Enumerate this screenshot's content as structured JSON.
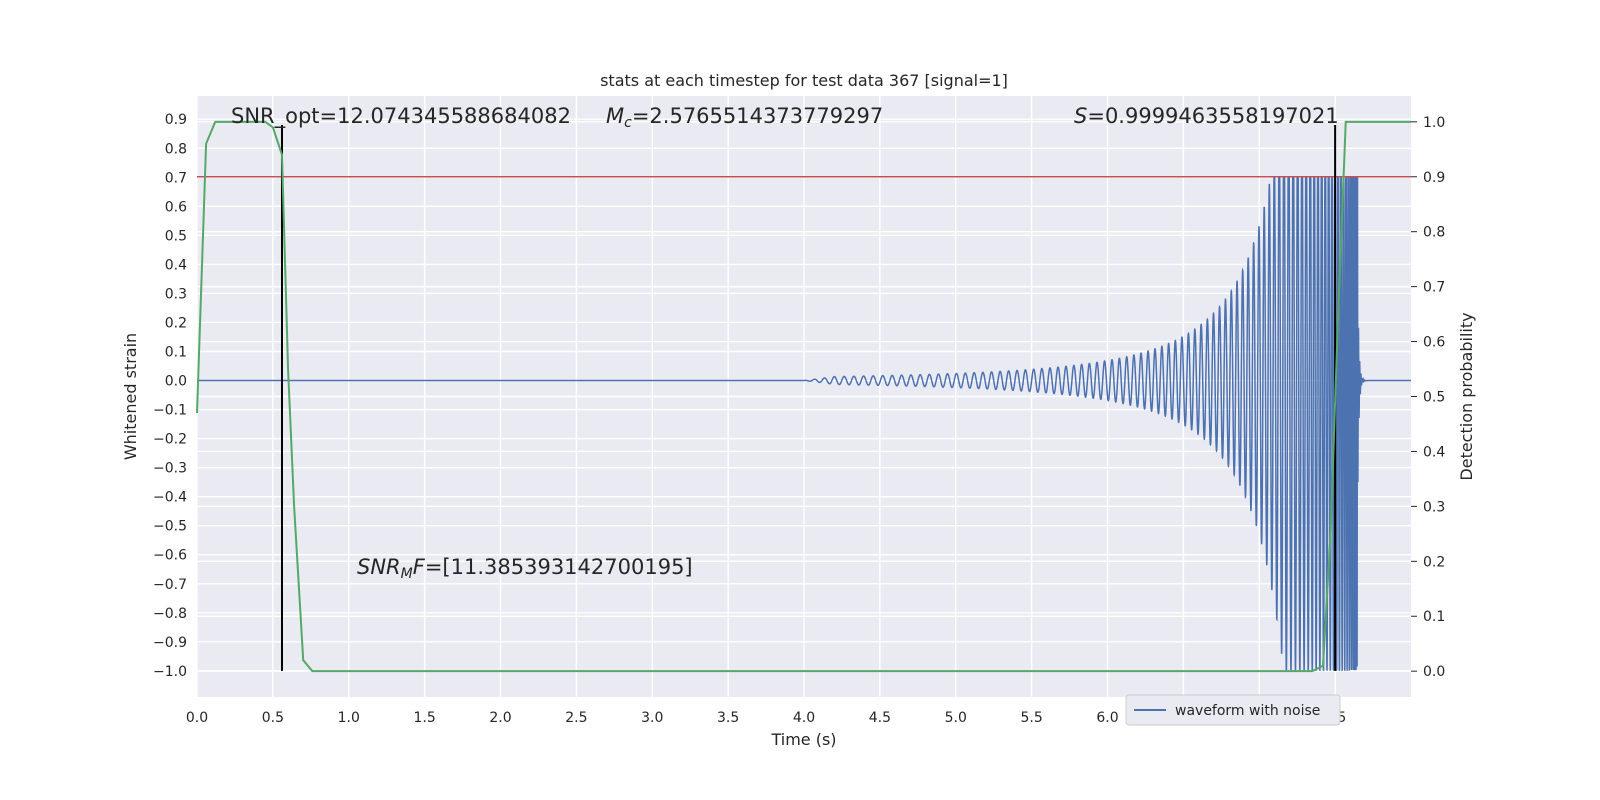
{
  "chart_data": {
    "type": "line",
    "title": "stats at each timestep for test data 367 [signal=1]",
    "xlabel": "Time (s)",
    "ylabel": "Whitened strain",
    "y2label": "Detection probability",
    "xlim": [
      0.0,
      8.0
    ],
    "ylim": [
      -1.09,
      0.98
    ],
    "y2lim": [
      -0.047,
      1.047
    ],
    "x_ticks": [
      0.0,
      0.5,
      1.0,
      1.5,
      2.0,
      2.5,
      3.0,
      3.5,
      4.0,
      4.5,
      5.0,
      5.5,
      6.0,
      6.5,
      7.0,
      7.5
    ],
    "x_tick_labels": [
      "0.0",
      "0.5",
      "1.0",
      "1.5",
      "2.0",
      "2.5",
      "3.0",
      "3.5",
      "4.0",
      "4.5",
      "5.0",
      "5.5",
      "6.0",
      "6.5",
      "7.0",
      "7.5"
    ],
    "y_ticks": [
      0.9,
      0.8,
      0.7,
      0.6,
      0.5,
      0.4,
      0.3,
      0.2,
      0.1,
      0.0,
      -0.1,
      -0.2,
      -0.3,
      -0.4,
      -0.5,
      -0.6,
      -0.7,
      -0.8,
      -0.9,
      -1.0
    ],
    "y_tick_labels": [
      "0.9",
      "0.8",
      "0.7",
      "0.6",
      "0.5",
      "0.4",
      "0.3",
      "0.2",
      "0.1",
      "0.0",
      "−0.1",
      "−0.2",
      "−0.3",
      "−0.4",
      "−0.5",
      "−0.6",
      "−0.7",
      "−0.8",
      "−0.9",
      "−1.0"
    ],
    "y2_ticks": [
      1.0,
      0.9,
      0.8,
      0.7,
      0.6,
      0.5,
      0.4,
      0.3,
      0.2,
      0.1,
      0.0
    ],
    "y2_tick_labels": [
      "1.0",
      "0.9",
      "0.8",
      "0.7",
      "0.6",
      "0.5",
      "0.4",
      "0.3",
      "0.2",
      "0.1",
      "0.0"
    ],
    "grid": true,
    "legend": {
      "placement": "bottom-right",
      "entries": [
        "waveform with noise"
      ]
    },
    "colors": {
      "waveform": "#4c72b0",
      "probability": "#55a868",
      "threshold": "#c44e52",
      "markers": "#000000",
      "background": "#eaeaf2",
      "grid": "#ffffff"
    },
    "annotations": {
      "snr_opt": "SNR_opt=12.074345588684082",
      "mc_symbol": "M",
      "mc_sub": "c",
      "mc_value": "=2.5765514373779297",
      "s_symbol": "S",
      "s_value": "=0.9999463558197021",
      "snrmf_a": "SNR",
      "snrmf_sub": "M",
      "snrmf_b": "F",
      "snrmf_value": "=[11.385393142700195]"
    },
    "threshold_y2": 0.9,
    "vertical_markers_x": [
      0.56,
      7.5
    ],
    "vertical_markers_y_range": [
      -1.0,
      0.88
    ],
    "waveform": {
      "signal_start": 4.0,
      "merger": 7.65,
      "end": 8.0,
      "peak_amplitude": 1.0,
      "min_y": -1.0,
      "max_y": 0.7
    },
    "probability_series": {
      "x": [
        0.0,
        0.06,
        0.12,
        0.45,
        0.5,
        0.56,
        0.6,
        0.64,
        0.7,
        0.76,
        0.85,
        7.2,
        7.35,
        7.42,
        7.47,
        7.52,
        7.57,
        7.62,
        7.7,
        8.0
      ],
      "y": [
        0.47,
        0.96,
        1.0,
        1.0,
        0.99,
        0.94,
        0.55,
        0.3,
        0.02,
        0.0,
        0.0,
        0.0,
        0.0,
        0.01,
        0.25,
        0.65,
        1.0,
        1.0,
        1.0,
        1.0
      ]
    }
  }
}
